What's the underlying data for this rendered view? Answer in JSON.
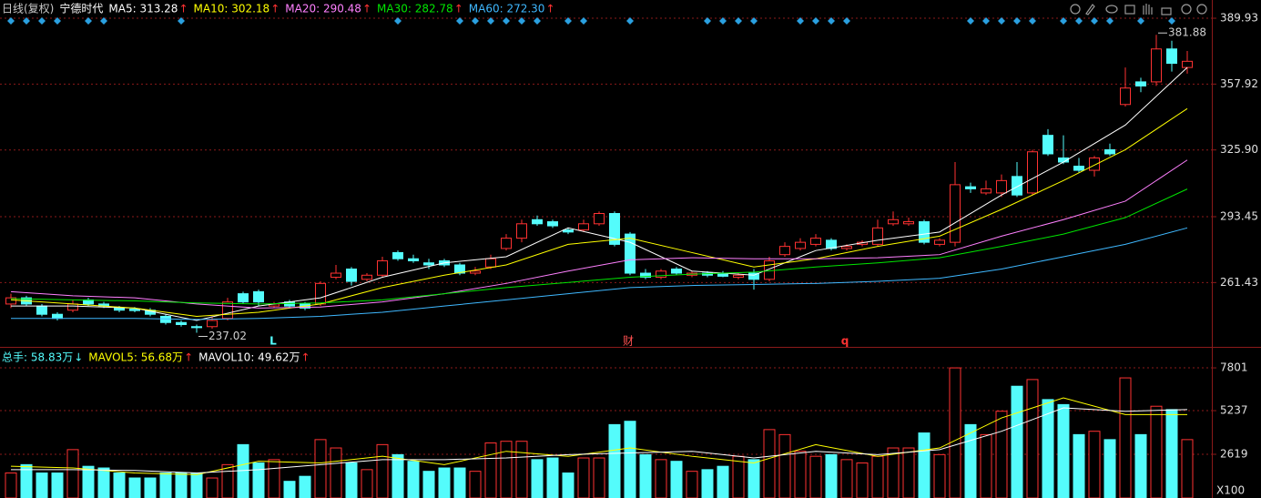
{
  "chart_data": [
    {
      "type": "candlestick",
      "title": "日线(复权)",
      "stock": "宁德时代",
      "ylim": [
        230.6,
        398.8
      ],
      "yticks": [
        261.43,
        293.45,
        {
          "value": 325.9,
          "label": "325.90"
        },
        357.92,
        389.93
      ],
      "grid": true,
      "open": [
        251,
        254,
        250,
        246,
        248,
        253,
        251,
        249,
        248.5,
        248,
        245,
        242,
        240,
        240,
        244,
        256,
        257,
        250,
        252,
        251,
        251,
        264,
        268,
        263,
        265,
        276,
        273,
        271,
        272,
        270,
        266,
        269,
        278,
        283,
        292,
        291,
        287,
        287,
        290,
        295,
        285,
        266,
        264,
        268,
        265,
        266,
        266,
        264,
        266,
        263,
        275,
        278,
        280,
        282,
        278,
        280,
        280,
        290,
        290,
        291,
        280,
        281,
        308,
        305,
        305,
        313,
        305,
        333,
        322,
        318,
        316,
        326,
        348,
        359,
        359,
        375,
        366
      ],
      "high": [
        256,
        255,
        251,
        247,
        253,
        254,
        252,
        250,
        249.5,
        249,
        246,
        243,
        241,
        245,
        254,
        257,
        258,
        252,
        253,
        252,
        262,
        270,
        269,
        266,
        274,
        277,
        275,
        273,
        273,
        271,
        269,
        275,
        285,
        292,
        294,
        292,
        288,
        292,
        296,
        296,
        286,
        268,
        268,
        269,
        267,
        267,
        267,
        266,
        268,
        274,
        281,
        283,
        285,
        283,
        280,
        282,
        292,
        296,
        293,
        292,
        283,
        320,
        310,
        311,
        314,
        320,
        326,
        336,
        333,
        322,
        323,
        329,
        366,
        361,
        381.88,
        379,
        374
      ],
      "low": [
        249,
        250,
        245,
        243,
        247,
        250,
        249,
        247,
        247,
        245,
        241,
        240,
        237.02,
        239,
        243,
        251,
        250,
        249,
        249,
        248,
        250,
        263,
        260,
        262,
        264,
        272,
        271,
        268,
        269,
        265,
        265,
        268,
        277,
        281,
        289,
        288,
        285,
        286,
        289,
        279,
        265,
        263,
        263,
        265,
        264,
        264,
        264,
        263,
        258,
        262,
        274,
        277,
        279,
        277,
        277,
        279,
        279,
        289,
        289,
        280,
        279,
        279,
        305,
        304,
        303,
        303,
        304,
        323,
        319,
        315,
        313,
        323,
        347,
        354,
        357,
        364,
        363
      ],
      "close": [
        254,
        251,
        246,
        244,
        251,
        251,
        250,
        248,
        247.8,
        246,
        242,
        241,
        239.5,
        243,
        252,
        252,
        252,
        251,
        250,
        249,
        261,
        266,
        262,
        265,
        272,
        273,
        272,
        270,
        270,
        266,
        267,
        273,
        283,
        290,
        290,
        289,
        286,
        290,
        295,
        280,
        266,
        264,
        267,
        266,
        266,
        265,
        264.5,
        265,
        263,
        272,
        279,
        281,
        283,
        278,
        279,
        281,
        288,
        292,
        291,
        281,
        282,
        309,
        307,
        307,
        311,
        304,
        325,
        324,
        320,
        316,
        322,
        324,
        356,
        357,
        375,
        368,
        369
      ],
      "up_color": "#ff3232",
      "down_color": "#54fcfc",
      "annotations": [
        381.88,
        237.02
      ],
      "events": [
        "L",
        "财",
        "q"
      ],
      "series": [
        {
          "name": "MA5: 313.28",
          "trend": "↑",
          "trend_color": "#ff3232",
          "color": "#ffffff",
          "x": [
            0,
            4,
            8,
            12,
            16,
            20,
            24,
            28,
            32,
            36,
            40,
            44,
            48,
            52,
            56,
            60,
            64,
            68,
            72,
            76
          ],
          "values": [
            250,
            250,
            249,
            243,
            250,
            254,
            264,
            271,
            274,
            288,
            281,
            267,
            265,
            277,
            282,
            286,
            304,
            320,
            338,
            366
          ]
        },
        {
          "name": "MA10: 302.18",
          "trend": "↑",
          "trend_color": "#ff3232",
          "color": "#ffff00",
          "x": [
            0,
            4,
            8,
            12,
            16,
            20,
            24,
            28,
            32,
            36,
            40,
            44,
            48,
            52,
            56,
            60,
            64,
            68,
            72,
            76
          ],
          "values": [
            253,
            251,
            249,
            245,
            247,
            251,
            259,
            265,
            270,
            280,
            283,
            276,
            269,
            273,
            279,
            284,
            297,
            311,
            326,
            346
          ]
        },
        {
          "name": "MA20: 290.48",
          "trend": "↑",
          "trend_color": "#ff3232",
          "color": "#ff80ff",
          "x": [
            0,
            4,
            8,
            12,
            16,
            20,
            24,
            28,
            32,
            36,
            40,
            44,
            48,
            52,
            56,
            60,
            64,
            68,
            72,
            76
          ],
          "values": [
            257,
            255,
            254,
            251,
            249,
            249.5,
            252,
            256,
            261,
            267,
            272.5,
            273.5,
            273,
            273,
            273.5,
            275,
            284,
            292,
            301,
            321
          ]
        },
        {
          "name": "MA30: 282.78",
          "trend": "↑",
          "trend_color": "#ff3232",
          "color": "#00e600",
          "x": [
            0,
            4,
            8,
            12,
            16,
            20,
            24,
            28,
            32,
            36,
            40,
            44,
            48,
            52,
            56,
            60,
            64,
            68,
            72,
            76
          ],
          "values": [
            253.6,
            253,
            252.5,
            251.5,
            251,
            251.5,
            253,
            256,
            259,
            261.5,
            264,
            265.5,
            266.5,
            269,
            271,
            273.5,
            279,
            285,
            293,
            306.9
          ]
        },
        {
          "name": "MA60: 272.30",
          "trend": "↑",
          "trend_color": "#ff3232",
          "color": "#3fb8ff",
          "x": [
            0,
            4,
            8,
            12,
            16,
            20,
            24,
            28,
            32,
            36,
            40,
            44,
            48,
            52,
            56,
            60,
            64,
            68,
            72,
            76
          ],
          "values": [
            244,
            244,
            244,
            243.5,
            244,
            245,
            247,
            250,
            253,
            256,
            259,
            260,
            260.5,
            261,
            262,
            263.5,
            268,
            274,
            280,
            288
          ]
        }
      ]
    },
    {
      "type": "bar",
      "unit_label": "X100",
      "ylim": [
        0,
        8950
      ],
      "yticks": [
        2619,
        5237,
        7801
      ],
      "grid": true,
      "bars": {
        "name": "总手: 58.83万",
        "trend": "↓",
        "trend_color": "#54fcfc",
        "color": "#54fcfc",
        "values": [
          1500,
          2000,
          1500,
          1500,
          2900,
          1900,
          1800,
          1500,
          1200,
          1200,
          1500,
          1500,
          1500,
          1200,
          2000,
          3200,
          2100,
          2300,
          1000,
          1300,
          3500,
          3000,
          2100,
          1700,
          3200,
          2600,
          2200,
          1600,
          1800,
          1800,
          1600,
          3300,
          3400,
          3400,
          2300,
          2400,
          1500,
          2400,
          2400,
          4400,
          4600,
          2600,
          2300,
          2200,
          1600,
          1700,
          1900,
          2500,
          2300,
          4100,
          3800,
          2800,
          2500,
          2600,
          2300,
          2100,
          2500,
          3000,
          3000,
          3900,
          2600,
          7800,
          4400,
          3800,
          5200,
          6700,
          7100,
          5900,
          5600,
          3800,
          4000,
          3500,
          7200,
          3800,
          5500,
          5300,
          3500
        ]
      },
      "series": [
        {
          "name": "MAVOL5: 56.68万",
          "trend": "↑",
          "trend_color": "#ff3232",
          "color": "#ffff00",
          "x": [
            0,
            4,
            8,
            12,
            16,
            20,
            24,
            28,
            32,
            36,
            40,
            44,
            48,
            52,
            56,
            60,
            64,
            68,
            72,
            76
          ],
          "values": [
            1900,
            1800,
            1500,
            1400,
            2200,
            2100,
            2500,
            2000,
            2800,
            2500,
            3000,
            2500,
            2100,
            3200,
            2500,
            3000,
            4800,
            6000,
            5000,
            5000
          ]
        },
        {
          "name": "MAVOL10: 49.62万",
          "trend": "↑",
          "trend_color": "#ff3232",
          "color": "#ffffff",
          "x": [
            0,
            4,
            8,
            12,
            16,
            20,
            24,
            28,
            32,
            36,
            40,
            44,
            48,
            52,
            56,
            60,
            64,
            68,
            72,
            76
          ],
          "values": [
            1700,
            1700,
            1650,
            1500,
            1700,
            2000,
            2300,
            2300,
            2400,
            2600,
            2700,
            2800,
            2400,
            2800,
            2600,
            2900,
            4000,
            5400,
            5200,
            5300
          ]
        }
      ]
    }
  ]
}
